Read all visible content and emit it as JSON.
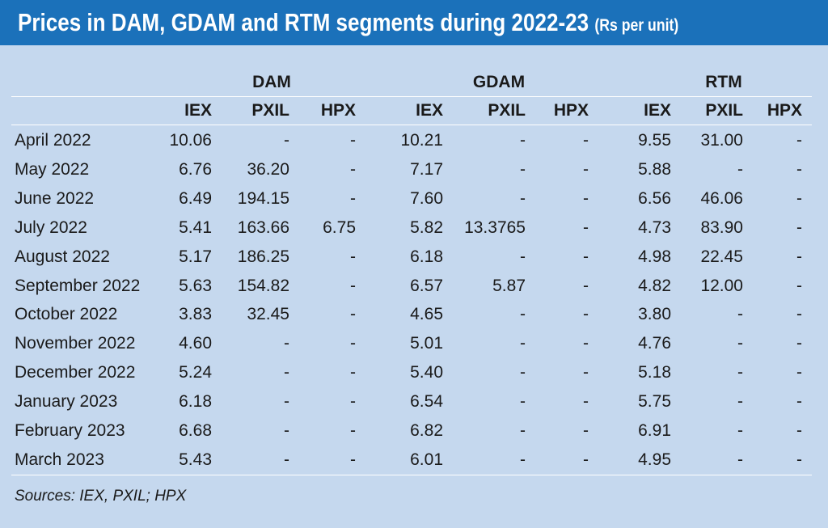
{
  "title": {
    "main": "Prices in DAM, GDAM and RTM segments during 2022-23",
    "unit": "(Rs per unit)"
  },
  "groups": [
    "DAM",
    "GDAM",
    "RTM"
  ],
  "subcolumns": [
    "IEX",
    "PXIL",
    "HPX",
    "IEX",
    "PXIL",
    "HPX",
    "IEX",
    "PXIL",
    "HPX"
  ],
  "rows": [
    {
      "month": "April 2022",
      "values": [
        "10.06",
        "-",
        "-",
        "10.21",
        "-",
        "-",
        "9.55",
        "31.00",
        "-"
      ]
    },
    {
      "month": "May 2022",
      "values": [
        "6.76",
        "36.20",
        "-",
        "7.17",
        "-",
        "-",
        "5.88",
        "-",
        "-"
      ]
    },
    {
      "month": "June 2022",
      "values": [
        "6.49",
        "194.15",
        "-",
        "7.60",
        "-",
        "-",
        "6.56",
        "46.06",
        "-"
      ]
    },
    {
      "month": "July 2022",
      "values": [
        "5.41",
        "163.66",
        "6.75",
        "5.82",
        "13.3765",
        "-",
        "4.73",
        "83.90",
        "-"
      ]
    },
    {
      "month": "August 2022",
      "values": [
        "5.17",
        "186.25",
        "-",
        "6.18",
        "-",
        "-",
        "4.98",
        "22.45",
        "-"
      ]
    },
    {
      "month": "September 2022",
      "values": [
        "5.63",
        "154.82",
        "-",
        "6.57",
        "5.87",
        "-",
        "4.82",
        "12.00",
        "-"
      ]
    },
    {
      "month": "October 2022",
      "values": [
        "3.83",
        "32.45",
        "-",
        "4.65",
        "-",
        "-",
        "3.80",
        "-",
        "-"
      ]
    },
    {
      "month": "November 2022",
      "values": [
        "4.60",
        "-",
        "-",
        "5.01",
        "-",
        "-",
        "4.76",
        "-",
        "-"
      ]
    },
    {
      "month": "December  2022",
      "values": [
        "5.24",
        "-",
        "-",
        "5.40",
        "-",
        "-",
        "5.18",
        "-",
        "-"
      ]
    },
    {
      "month": "January 2023",
      "values": [
        "6.18",
        "-",
        "-",
        "6.54",
        "-",
        "-",
        "5.75",
        "-",
        "-"
      ]
    },
    {
      "month": "February 2023",
      "values": [
        "6.68",
        "-",
        "-",
        "6.82",
        "-",
        "-",
        "6.91",
        "-",
        "-"
      ]
    },
    {
      "month": "March 2023",
      "values": [
        "5.43",
        "-",
        "-",
        "6.01",
        "-",
        "-",
        "4.95",
        "-",
        "-"
      ]
    }
  ],
  "source": "Sources: IEX, PXIL; HPX",
  "colors": {
    "banner": "#1b71ba",
    "panel": "#c5d8ee",
    "rule": "#ffffff"
  }
}
